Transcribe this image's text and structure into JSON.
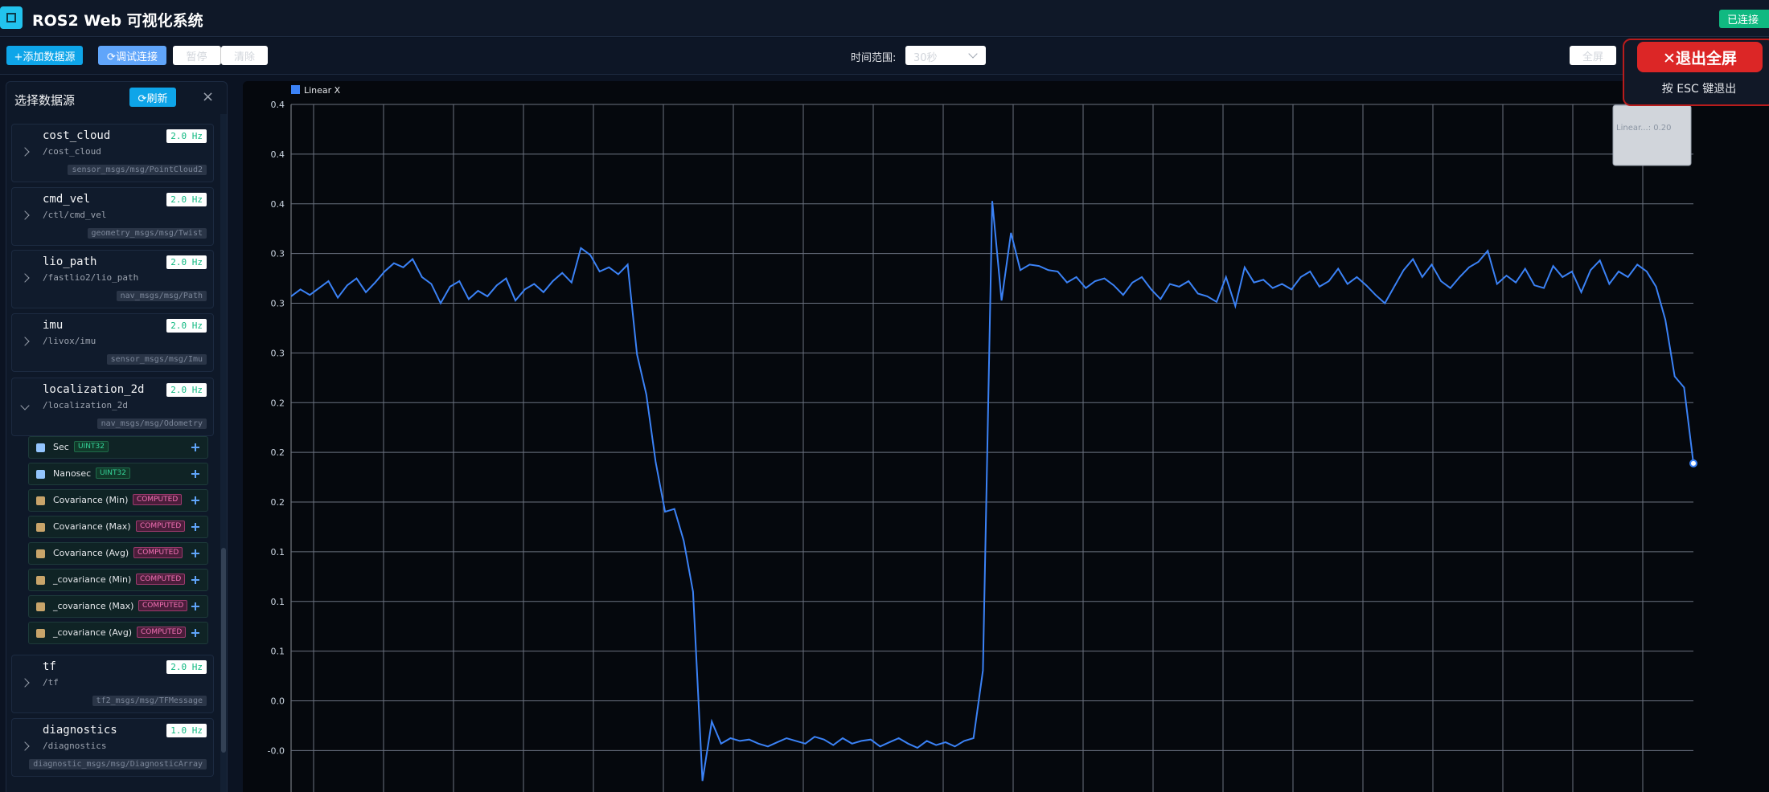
{
  "header": {
    "title": "ROS2 Web 可视化系统",
    "status": "已连接"
  },
  "toolbar": {
    "add_source": "+添加数据源",
    "debug_connection": "⟳调试连接",
    "pause": "暂停",
    "clear": "清除",
    "time_range_label": "时间范围:",
    "time_range_value": "30秒",
    "fullscreen": "全屏"
  },
  "fullscreen_overlay": {
    "exit": "✕退出全屏",
    "hint": "按 ESC 键退出"
  },
  "sidebar": {
    "title": "选择数据源",
    "refresh": "⟳刷新",
    "close": "×",
    "topics": [
      {
        "name": "cost_cloud",
        "path": "/cost_cloud",
        "rate": "2.0 Hz",
        "type": "sensor_msgs/msg/PointCloud2"
      },
      {
        "name": "cmd_vel",
        "path": "/ctl/cmd_vel",
        "rate": "2.0 Hz",
        "type": "geometry_msgs/msg/Twist"
      },
      {
        "name": "lio_path",
        "path": "/fastlio2/lio_path",
        "rate": "2.0 Hz",
        "type": "nav_msgs/msg/Path"
      },
      {
        "name": "imu",
        "path": "/livox/imu",
        "rate": "2.0 Hz",
        "type": "sensor_msgs/msg/Imu"
      },
      {
        "name": "localization_2d",
        "path": "/localization_2d",
        "rate": "2.0 Hz",
        "type": "nav_msgs/msg/Odometry"
      },
      {
        "name": "tf",
        "path": "/tf",
        "rate": "2.0 Hz",
        "type": "tf2_msgs/msg/TFMessage"
      },
      {
        "name": "diagnostics",
        "path": "/diagnostics",
        "rate": "1.0 Hz",
        "type": "diagnostic_msgs/msg/DiagnosticArray"
      }
    ],
    "fields": [
      {
        "name": "Sec",
        "kind": "UINT32"
      },
      {
        "name": "Nanosec",
        "kind": "UINT32"
      },
      {
        "name": "Covariance (Min)",
        "kind": "COMPUTED"
      },
      {
        "name": "Covariance (Max)",
        "kind": "COMPUTED"
      },
      {
        "name": "Covariance (Avg)",
        "kind": "COMPUTED"
      },
      {
        "name": "_covariance (Min)",
        "kind": "COMPUTED"
      },
      {
        "name": "_covariance (Max)",
        "kind": "COMPUTED"
      },
      {
        "name": "_covariance (Avg)",
        "kind": "COMPUTED"
      }
    ]
  },
  "chart_data": {
    "type": "line",
    "tooltip": "Linear...: 0.20",
    "grid": true,
    "ylim": [
      -0.051,
      0.447
    ],
    "yticks": [
      {
        "value": -0.021,
        "label": "-0.0"
      },
      {
        "value": 0.015,
        "label": "0.0"
      },
      {
        "value": 0.051,
        "label": "0.1"
      },
      {
        "value": 0.087,
        "label": "0.1"
      },
      {
        "value": 0.123,
        "label": "0.1"
      },
      {
        "value": 0.159,
        "label": "0.2"
      },
      {
        "value": 0.195,
        "label": "0.2"
      },
      {
        "value": 0.231,
        "label": "0.2"
      },
      {
        "value": 0.267,
        "label": "0.3"
      },
      {
        "value": 0.303,
        "label": "0.3"
      },
      {
        "value": 0.339,
        "label": "0.3"
      },
      {
        "value": 0.375,
        "label": "0.4"
      },
      {
        "value": 0.411,
        "label": "0.4"
      },
      {
        "value": 0.447,
        "label": "0.4"
      }
    ],
    "series": [
      {
        "name": "Linear X",
        "color": "#3b82f6",
        "values": [
          0.308,
          0.313,
          0.309,
          0.314,
          0.319,
          0.307,
          0.316,
          0.321,
          0.311,
          0.318,
          0.326,
          0.332,
          0.329,
          0.335,
          0.322,
          0.317,
          0.303,
          0.315,
          0.319,
          0.306,
          0.312,
          0.308,
          0.316,
          0.321,
          0.305,
          0.313,
          0.317,
          0.311,
          0.319,
          0.325,
          0.318,
          0.343,
          0.338,
          0.326,
          0.329,
          0.324,
          0.331,
          0.266,
          0.237,
          0.188,
          0.152,
          0.154,
          0.131,
          0.094,
          -0.043,
          0.0,
          -0.016,
          -0.012,
          -0.014,
          -0.013,
          -0.016,
          -0.018,
          -0.015,
          -0.012,
          -0.014,
          -0.016,
          -0.011,
          -0.013,
          -0.017,
          -0.012,
          -0.016,
          -0.014,
          -0.013,
          -0.018,
          -0.015,
          -0.012,
          -0.016,
          -0.019,
          -0.014,
          -0.017,
          -0.015,
          -0.018,
          -0.014,
          -0.012,
          0.037,
          0.377,
          0.305,
          0.354,
          0.327,
          0.331,
          0.33,
          0.327,
          0.326,
          0.318,
          0.322,
          0.314,
          0.319,
          0.321,
          0.316,
          0.309,
          0.318,
          0.322,
          0.313,
          0.306,
          0.317,
          0.315,
          0.319,
          0.31,
          0.308,
          0.304,
          0.322,
          0.301,
          0.329,
          0.318,
          0.32,
          0.314,
          0.317,
          0.313,
          0.322,
          0.326,
          0.315,
          0.319,
          0.328,
          0.317,
          0.322,
          0.316,
          0.309,
          0.303,
          0.315,
          0.327,
          0.335,
          0.322,
          0.331,
          0.319,
          0.314,
          0.322,
          0.329,
          0.333,
          0.341,
          0.317,
          0.323,
          0.318,
          0.328,
          0.316,
          0.314,
          0.33,
          0.322,
          0.326,
          0.311,
          0.327,
          0.334,
          0.317,
          0.326,
          0.322,
          0.331,
          0.326,
          0.315,
          0.291,
          0.25,
          0.242,
          0.187
        ]
      }
    ]
  }
}
